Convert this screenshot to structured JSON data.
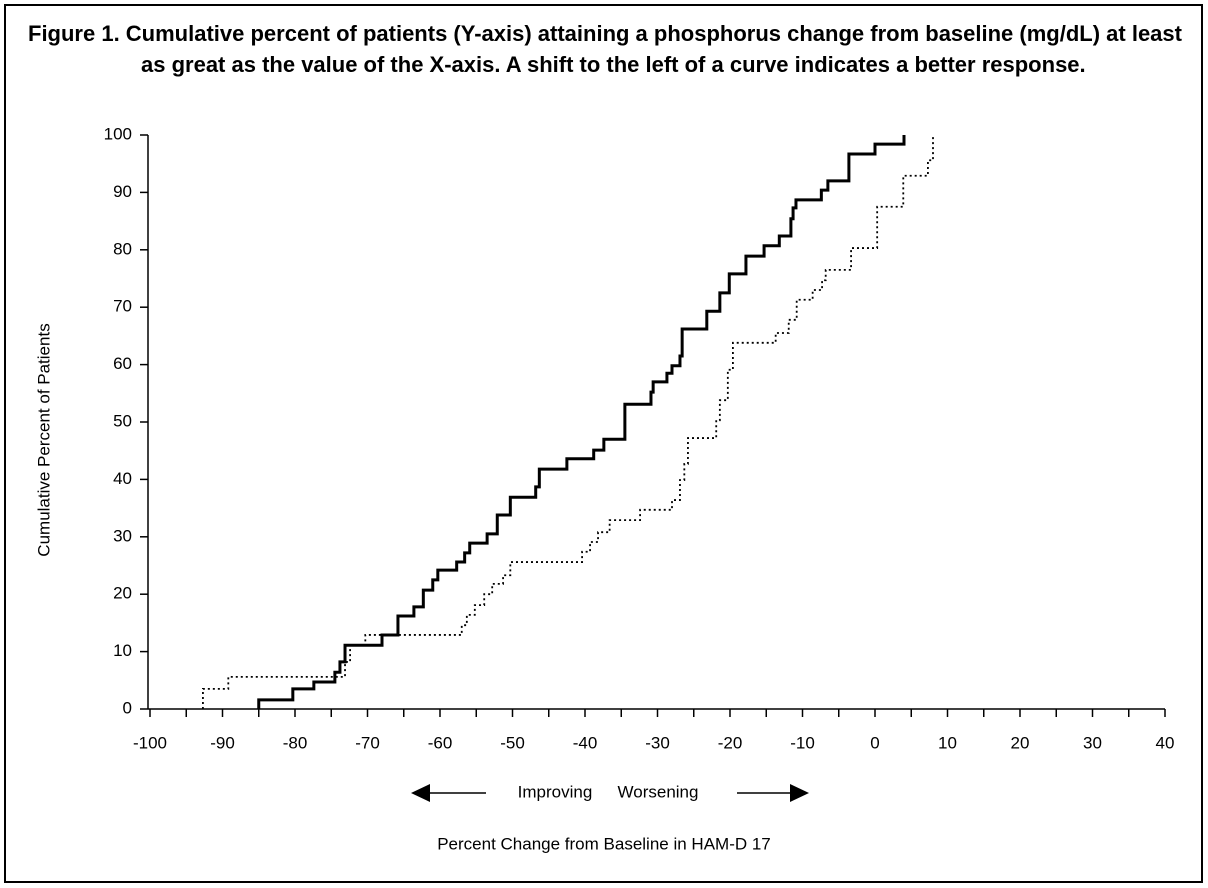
{
  "chart_data": {
    "type": "step",
    "title": "Figure 1. Cumulative percent of patients (Y-axis) attaining a phosphorus change from baseline (mg/dL) at least as great as the value of the X-axis. A shift to the left of a curve indicates a better response.",
    "xlabel": "Percent Change from Baseline in HAM-D 17",
    "ylabel": "Cumulative Percent of Patients",
    "annotations": [
      "Improving",
      "Worsening"
    ],
    "xlim": [
      -100,
      40
    ],
    "xticks": [
      -100,
      -90,
      -80,
      -70,
      -60,
      -50,
      -40,
      -30,
      -20,
      -10,
      0,
      10,
      20,
      30,
      40
    ],
    "ylim": [
      0,
      100
    ],
    "yticks": [
      0,
      10,
      20,
      30,
      40,
      50,
      60,
      70,
      80,
      90,
      100
    ],
    "series": [
      {
        "color": "#000000",
        "style": "solid",
        "x": [
          -85,
          -80.3,
          -77.4,
          -74.5,
          -73.8,
          -73.1,
          -68,
          -65.8,
          -63.6,
          -62.3,
          -61,
          -60.3,
          -57.7,
          -56.6,
          -55.9,
          -53.5,
          -52.1,
          -50.3,
          -46.8,
          -46.3,
          -42.5,
          -38.8,
          -37.4,
          -34.5,
          -30.9,
          -30.6,
          -28.7,
          -28,
          -26.9,
          -26.6,
          -23.2,
          -21.4,
          -20.1,
          -17.8,
          -15.3,
          -13.2,
          -11.6,
          -11.3,
          -10.9,
          -7.4,
          -6.5,
          -3.6,
          0,
          4
        ],
        "values": [
          1.6,
          3.5,
          4.7,
          6.4,
          8.2,
          11.1,
          12.9,
          16.2,
          17.8,
          20.7,
          22.5,
          24.2,
          25.6,
          27.2,
          28.9,
          30.5,
          33.8,
          36.9,
          38.7,
          41.8,
          43.6,
          45.1,
          47,
          53.1,
          55.2,
          57,
          58.5,
          59.8,
          61.5,
          66.2,
          69.3,
          72.5,
          75.8,
          78.9,
          80.7,
          82.4,
          85.4,
          87.3,
          88.7,
          90.4,
          92,
          96.7,
          98.4,
          100
        ]
      },
      {
        "color": "#000000",
        "style": "dotted",
        "x": [
          -92.7,
          -89.2,
          -73.1,
          -72.4,
          -70.3,
          -57,
          -56.3,
          -55.2,
          -53.9,
          -52.8,
          -51.3,
          -50.3,
          -40.4,
          -39.3,
          -38.2,
          -36.6,
          -32.4,
          -28,
          -26.9,
          -26.3,
          -25.8,
          -21.9,
          -21.4,
          -20.3,
          -19.6,
          -13.7,
          -11.9,
          -10.8,
          -8.6,
          -7.3,
          -6.8,
          -3.3,
          0.3,
          3.9,
          7.3,
          8
        ],
        "values": [
          3.5,
          5.6,
          8.2,
          11.1,
          12.9,
          14.6,
          16.4,
          18.1,
          20,
          21.8,
          23.3,
          25.6,
          27.4,
          29.1,
          30.8,
          32.9,
          34.7,
          36.4,
          39.9,
          42.7,
          47.2,
          50.3,
          53.8,
          59.1,
          63.8,
          65.5,
          67.8,
          71.3,
          73,
          74.7,
          76.5,
          80.3,
          87.5,
          92.9,
          95.6,
          100
        ]
      }
    ]
  }
}
